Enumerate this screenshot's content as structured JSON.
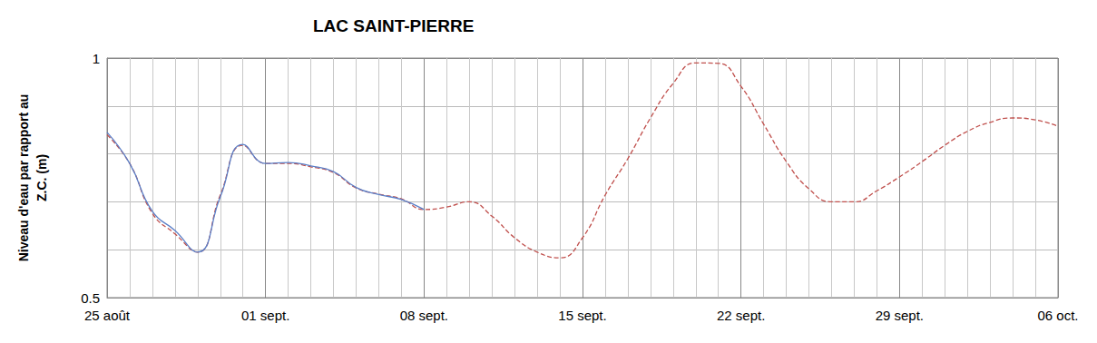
{
  "chart_data": {
    "type": "line",
    "title": "LAC SAINT-PIERRE",
    "y_label": "Niveau d'eau par rapport au\nZ.C. (m)",
    "categories": [
      "25 août",
      null,
      null,
      null,
      null,
      null,
      null,
      "01 sept.",
      null,
      null,
      null,
      null,
      null,
      null,
      "08 sept.",
      null,
      null,
      null,
      null,
      null,
      null,
      "15 sept.",
      null,
      null,
      null,
      null,
      null,
      null,
      "22 sept.",
      null,
      null,
      null,
      null,
      null,
      null,
      "29 sept.",
      null,
      null,
      null,
      null,
      null,
      null,
      "06 oct."
    ],
    "series": [
      {
        "color": "#c0504d",
        "line_style": "dashed",
        "values": [
          0.84,
          0.78,
          0.676,
          0.633,
          0.595,
          0.714,
          0.818,
          0.78,
          0.78,
          0.773,
          0.761,
          0.729,
          0.716,
          0.706,
          0.684,
          0.689,
          0.7,
          0.67,
          0.625,
          0.595,
          0.583,
          0.625,
          0.714,
          0.79,
          0.875,
          0.947,
          0.99,
          0.989,
          0.941,
          0.862,
          0.784,
          0.727,
          0.7,
          0.7,
          0.723,
          0.752,
          0.784,
          0.818,
          0.847,
          0.866,
          0.875,
          0.871,
          0.858
        ]
      },
      {
        "color": "#5b7fc7",
        "line_style": "solid",
        "values": [
          0.845,
          0.78,
          0.68,
          0.64,
          0.595,
          0.71,
          0.82,
          0.78,
          0.782,
          0.775,
          0.763,
          0.73,
          0.715,
          0.705,
          0.684,
          null,
          null,
          null,
          null,
          null,
          null,
          null,
          null,
          null,
          null,
          null,
          null,
          null,
          null,
          null,
          null,
          null,
          null,
          null,
          null,
          null,
          null,
          null,
          null,
          null,
          null,
          null,
          null
        ]
      }
    ],
    "ylim": [
      0.5,
      1
    ],
    "yticks": [
      0.5,
      1
    ],
    "grid": true
  }
}
